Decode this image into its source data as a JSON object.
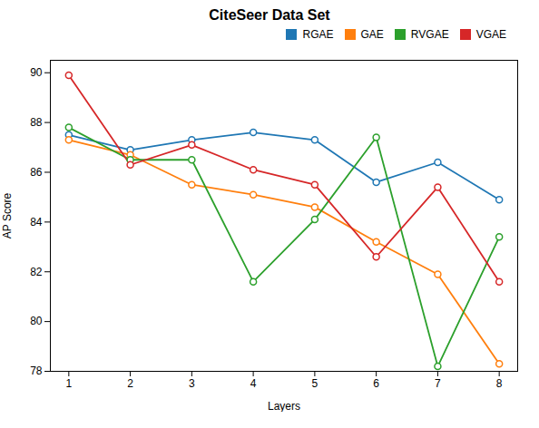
{
  "chart_data": {
    "type": "line",
    "title": "CiteSeer Data Set",
    "xlabel": "Layers",
    "ylabel": "AP Score",
    "x": [
      1,
      2,
      3,
      4,
      5,
      6,
      7,
      8
    ],
    "series": [
      {
        "name": "RGAE",
        "color": "#1f77b4",
        "values": [
          87.5,
          86.9,
          87.3,
          87.6,
          87.3,
          85.6,
          86.4,
          84.9
        ]
      },
      {
        "name": "GAE",
        "color": "#ff7f0e",
        "values": [
          87.3,
          86.7,
          85.5,
          85.1,
          84.6,
          83.2,
          81.9,
          78.3
        ]
      },
      {
        "name": "RVGAE",
        "color": "#2ca02c",
        "values": [
          87.8,
          86.5,
          86.5,
          81.6,
          84.1,
          87.4,
          78.2,
          83.4
        ]
      },
      {
        "name": "VGAE",
        "color": "#d62728",
        "values": [
          89.9,
          86.3,
          87.1,
          86.1,
          85.5,
          82.6,
          85.4,
          81.6
        ]
      }
    ],
    "xlim": [
      0.7,
      8.3
    ],
    "xticks": [
      1,
      2,
      3,
      4,
      5,
      6,
      7,
      8
    ],
    "ylim": [
      78,
      90.5
    ],
    "yticks": [
      78,
      80,
      82,
      84,
      86,
      88,
      90
    ],
    "marker": "o",
    "legend": "upper right",
    "grid": false
  }
}
